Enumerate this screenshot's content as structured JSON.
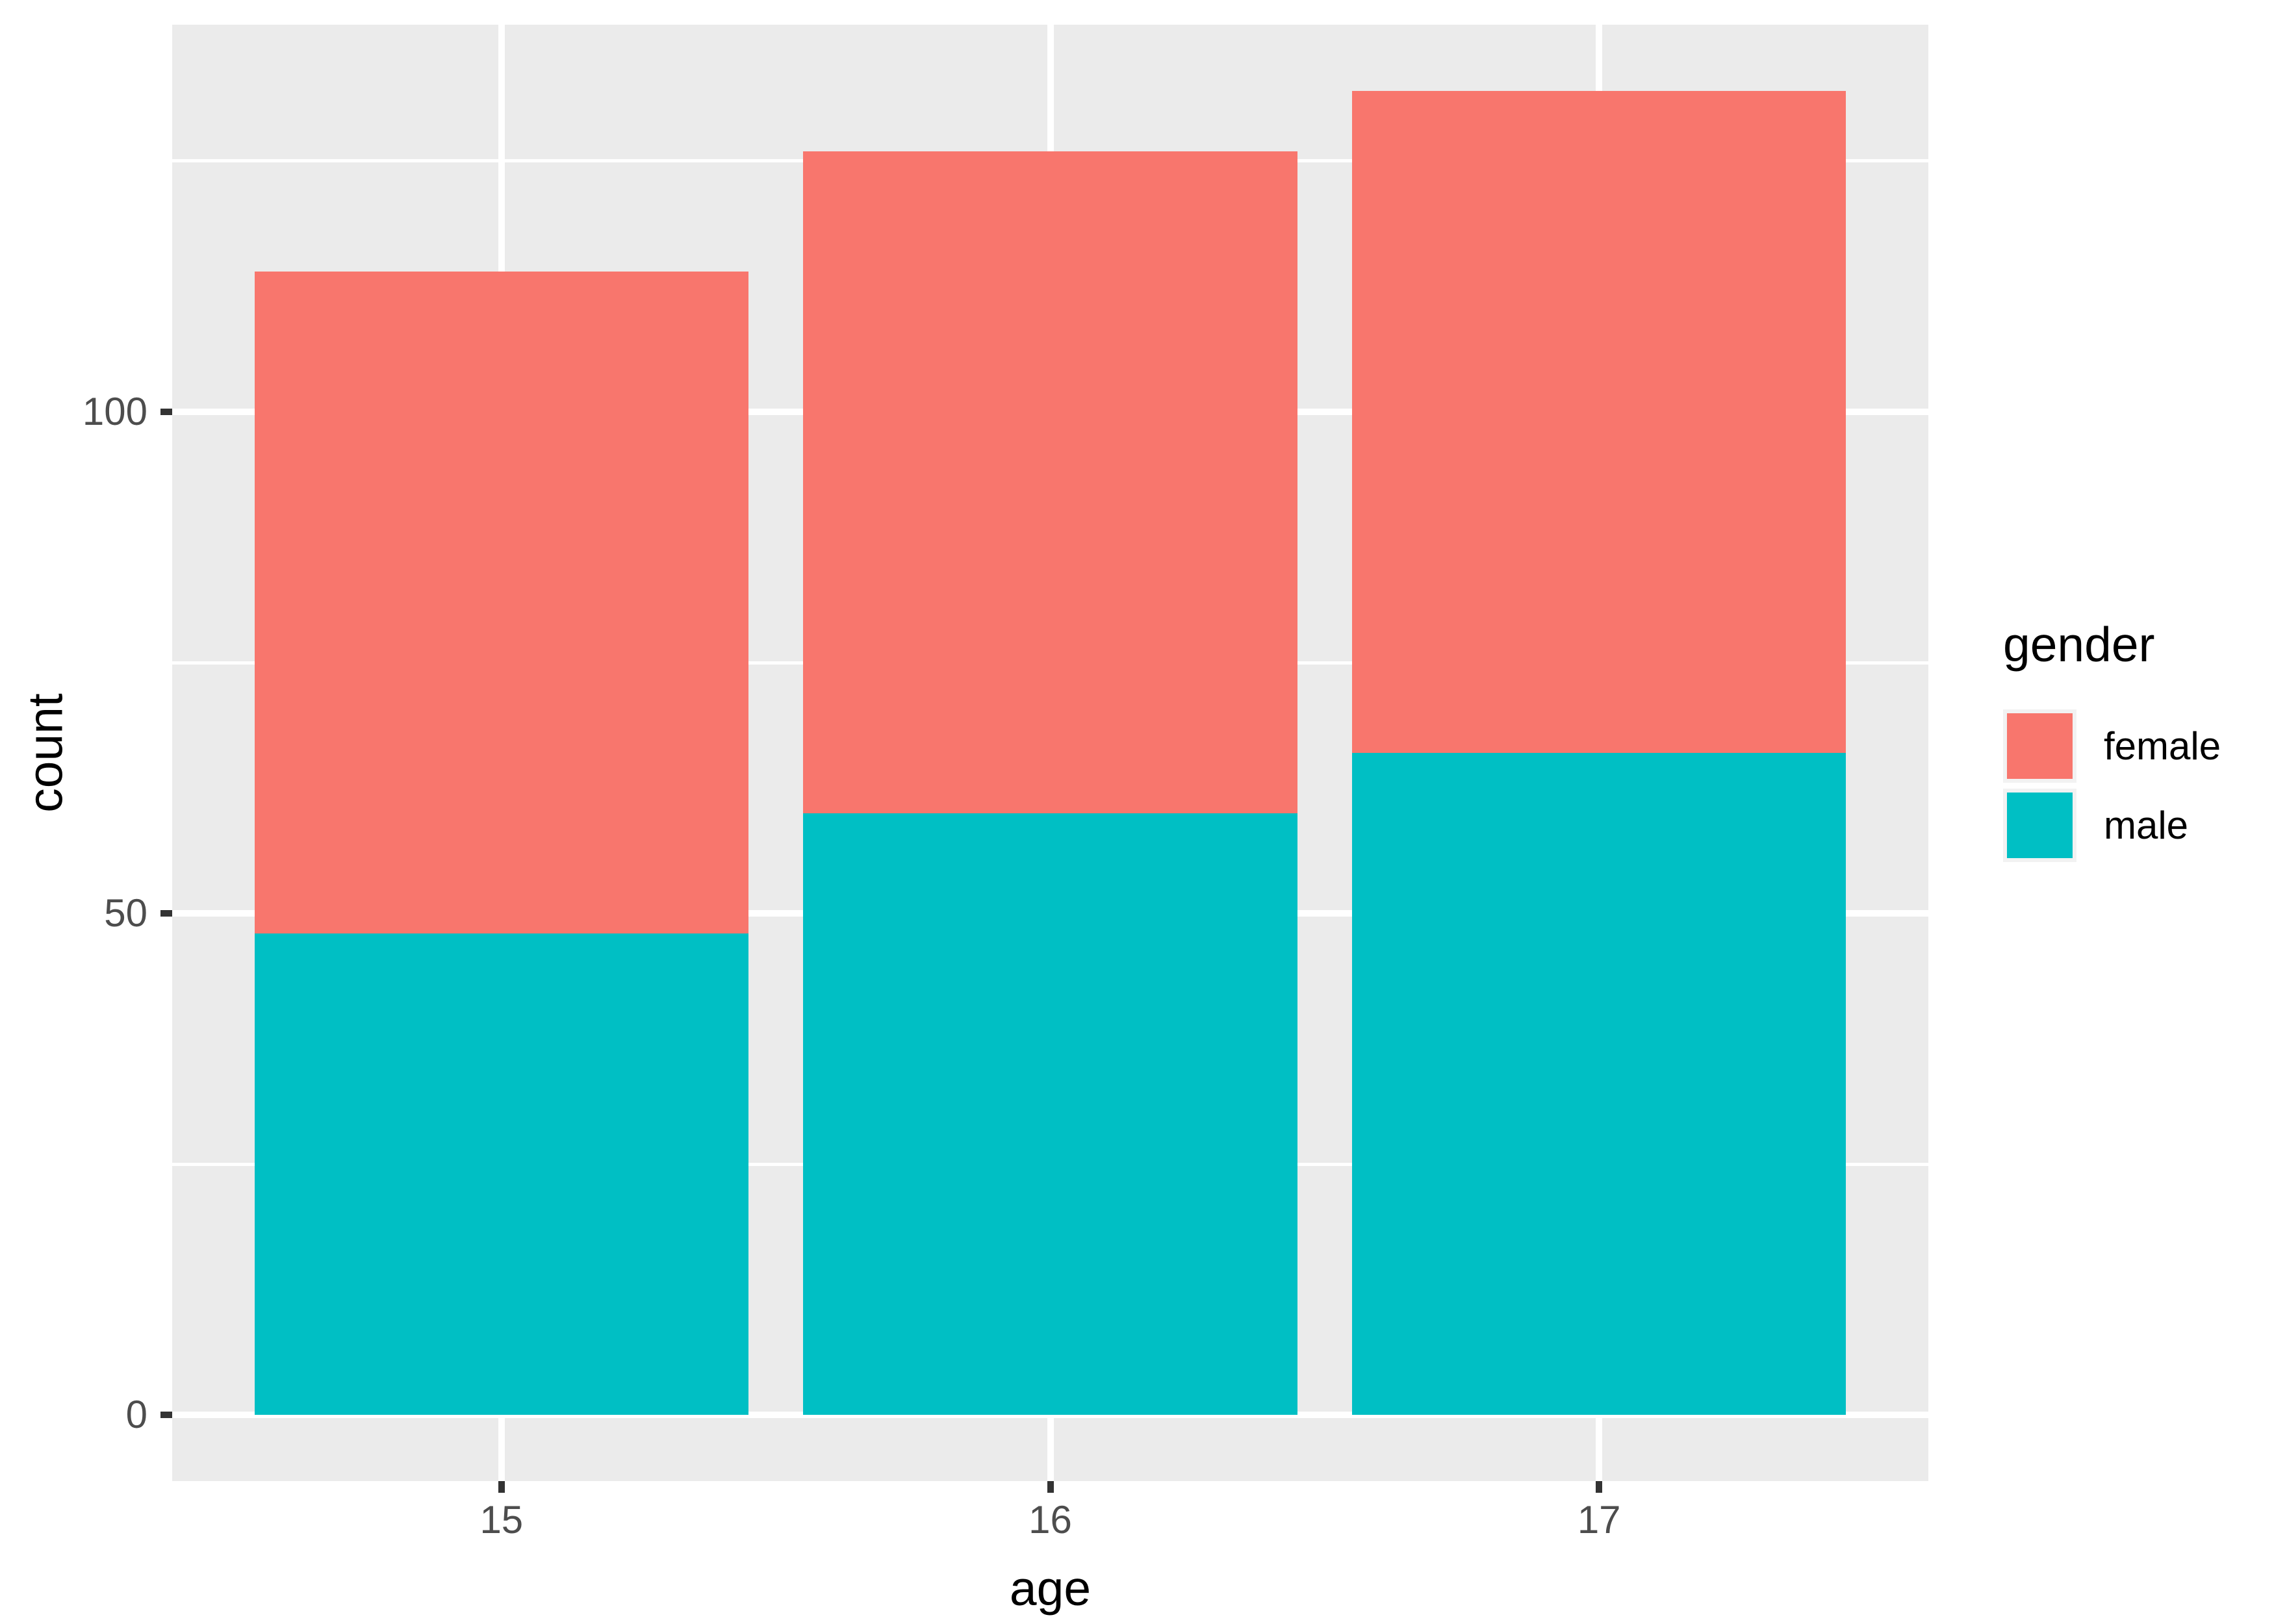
{
  "chart_data": {
    "type": "bar",
    "stacked": true,
    "title": "",
    "xlabel": "age",
    "ylabel": "count",
    "categories": [
      "15",
      "16",
      "17"
    ],
    "series": [
      {
        "name": "female",
        "color": "#F8766D",
        "values": [
          66,
          66,
          66
        ]
      },
      {
        "name": "male",
        "color": "#00BFC4",
        "values": [
          48,
          60,
          66
        ]
      }
    ],
    "totals": [
      114,
      126,
      132
    ],
    "y_axis": {
      "ticks": [
        0,
        50,
        100
      ],
      "tick_labels": [
        "0",
        "50",
        "100"
      ],
      "minor_ticks": [
        25,
        75,
        125
      ],
      "range": [
        -6.6,
        138.6
      ]
    },
    "x_axis": {
      "tick_labels": [
        "15",
        "16",
        "17"
      ],
      "centers": [
        1,
        2,
        3
      ],
      "range": [
        0.4,
        3.6
      ],
      "bar_width": 0.9
    },
    "legend": {
      "title": "gender",
      "position": "right",
      "entries": [
        {
          "label": "female",
          "color": "#F8766D"
        },
        {
          "label": "male",
          "color": "#00BFC4"
        }
      ]
    },
    "grid": true
  },
  "style": {
    "background": "#FFFFFF",
    "panel_bg": "#EBEBEB",
    "grid_color": "#FFFFFF",
    "tick_color": "#333333",
    "tick_label_color": "#4D4D4D",
    "title_color": "#000000",
    "legend_key_bg": "#F2F2F2"
  }
}
